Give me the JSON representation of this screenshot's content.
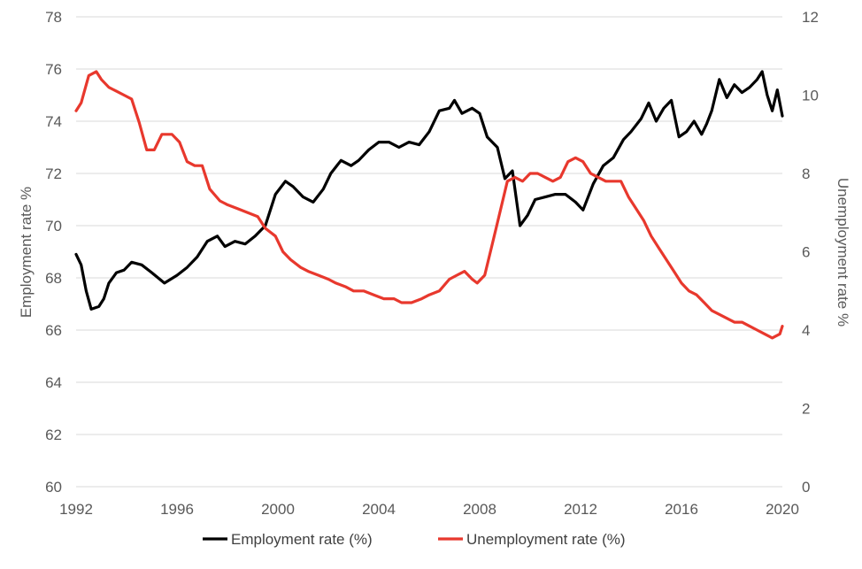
{
  "chart_data": {
    "type": "line",
    "xlabel": "",
    "ylabel": "Employment rate %",
    "y2label": "Unemployment rate %",
    "xlim": [
      1992,
      2020
    ],
    "ylim": [
      60,
      78
    ],
    "y2lim": [
      0,
      12
    ],
    "x_ticks": [
      "1992",
      "1996",
      "2000",
      "2004",
      "2008",
      "2012",
      "2016",
      "2020"
    ],
    "y_ticks": [
      "60",
      "62",
      "64",
      "66",
      "68",
      "70",
      "72",
      "74",
      "76",
      "78"
    ],
    "y2_ticks": [
      "0",
      "2",
      "4",
      "6",
      "8",
      "10",
      "12"
    ],
    "grid": "horizontal",
    "legend_position": "bottom",
    "colors": {
      "employment": "#000000",
      "unemployment": "#e8382d",
      "grid": "#d9d9d9"
    },
    "series": [
      {
        "name": "Employment rate (%)",
        "axis": "left",
        "x": [
          1992.0,
          1992.2,
          1992.4,
          1992.6,
          1992.9,
          1993.1,
          1993.3,
          1993.6,
          1993.9,
          1994.2,
          1994.6,
          1995.0,
          1995.5,
          1996.0,
          1996.4,
          1996.8,
          1997.2,
          1997.6,
          1997.9,
          1998.3,
          1998.7,
          1999.1,
          1999.5,
          1999.9,
          2000.3,
          2000.6,
          2001.0,
          2001.4,
          2001.8,
          2002.1,
          2002.5,
          2002.9,
          2003.2,
          2003.6,
          2004.0,
          2004.4,
          2004.8,
          2005.2,
          2005.6,
          2006.0,
          2006.4,
          2006.8,
          2007.0,
          2007.3,
          2007.7,
          2008.0,
          2008.3,
          2008.7,
          2009.0,
          2009.3,
          2009.6,
          2009.9,
          2010.2,
          2010.6,
          2011.0,
          2011.4,
          2011.8,
          2012.1,
          2012.5,
          2012.9,
          2013.3,
          2013.7,
          2014.0,
          2014.4,
          2014.7,
          2015.0,
          2015.3,
          2015.6,
          2015.9,
          2016.2,
          2016.5,
          2016.8,
          2017.0,
          2017.2,
          2017.5,
          2017.8,
          2018.1,
          2018.4,
          2018.7,
          2019.0,
          2019.2,
          2019.4,
          2019.6,
          2019.8,
          2020.0
        ],
        "values": [
          68.9,
          68.5,
          67.5,
          66.8,
          66.9,
          67.2,
          67.8,
          68.2,
          68.3,
          68.6,
          68.5,
          68.2,
          67.8,
          68.1,
          68.4,
          68.8,
          69.4,
          69.6,
          69.2,
          69.4,
          69.3,
          69.6,
          70.0,
          71.2,
          71.7,
          71.5,
          71.1,
          70.9,
          71.4,
          72.0,
          72.5,
          72.3,
          72.5,
          72.9,
          73.2,
          73.2,
          73.0,
          73.2,
          73.1,
          73.6,
          74.4,
          74.5,
          74.8,
          74.3,
          74.5,
          74.3,
          73.4,
          73.0,
          71.8,
          72.1,
          70.0,
          70.4,
          71.0,
          71.1,
          71.2,
          71.2,
          70.9,
          70.6,
          71.6,
          72.3,
          72.6,
          73.3,
          73.6,
          74.1,
          74.7,
          74.0,
          74.5,
          74.8,
          73.4,
          73.6,
          74.0,
          73.5,
          73.9,
          74.4,
          75.6,
          74.9,
          75.4,
          75.1,
          75.3,
          75.6,
          75.9,
          75.0,
          74.4,
          75.2,
          74.2
        ]
      },
      {
        "name": "Unemployment rate (%)",
        "axis": "right",
        "x": [
          1992.0,
          1992.2,
          1992.5,
          1992.8,
          1993.0,
          1993.3,
          1993.6,
          1993.9,
          1994.2,
          1994.5,
          1994.8,
          1995.1,
          1995.4,
          1995.8,
          1996.1,
          1996.4,
          1996.7,
          1997.0,
          1997.3,
          1997.7,
          1998.0,
          1998.4,
          1998.8,
          1999.2,
          1999.5,
          1999.9,
          2000.2,
          2000.5,
          2000.9,
          2001.2,
          2001.6,
          2002.0,
          2002.3,
          2002.7,
          2003.0,
          2003.4,
          2003.8,
          2004.2,
          2004.6,
          2004.9,
          2005.3,
          2005.7,
          2006.0,
          2006.4,
          2006.8,
          2007.1,
          2007.4,
          2007.7,
          2007.9,
          2008.2,
          2008.5,
          2008.8,
          2009.1,
          2009.4,
          2009.7,
          2010.0,
          2010.3,
          2010.6,
          2010.9,
          2011.2,
          2011.5,
          2011.8,
          2012.1,
          2012.4,
          2012.7,
          2013.0,
          2013.3,
          2013.6,
          2013.9,
          2014.2,
          2014.5,
          2014.8,
          2015.1,
          2015.4,
          2015.7,
          2016.0,
          2016.3,
          2016.6,
          2016.9,
          2017.2,
          2017.5,
          2017.8,
          2018.1,
          2018.4,
          2018.7,
          2019.0,
          2019.3,
          2019.6,
          2019.9,
          2020.0
        ],
        "values": [
          9.6,
          9.8,
          10.5,
          10.6,
          10.4,
          10.2,
          10.1,
          10.0,
          9.9,
          9.3,
          8.6,
          8.6,
          9.0,
          9.0,
          8.8,
          8.3,
          8.2,
          8.2,
          7.6,
          7.3,
          7.2,
          7.1,
          7.0,
          6.9,
          6.6,
          6.4,
          6.0,
          5.8,
          5.6,
          5.5,
          5.4,
          5.3,
          5.2,
          5.1,
          5.0,
          5.0,
          4.9,
          4.8,
          4.8,
          4.7,
          4.7,
          4.8,
          4.9,
          5.0,
          5.3,
          5.4,
          5.5,
          5.3,
          5.2,
          5.4,
          6.2,
          7.0,
          7.8,
          7.9,
          7.8,
          8.0,
          8.0,
          7.9,
          7.8,
          7.9,
          8.3,
          8.4,
          8.3,
          8.0,
          7.9,
          7.8,
          7.8,
          7.8,
          7.4,
          7.1,
          6.8,
          6.4,
          6.1,
          5.8,
          5.5,
          5.2,
          5.0,
          4.9,
          4.7,
          4.5,
          4.4,
          4.3,
          4.2,
          4.2,
          4.1,
          4.0,
          3.9,
          3.8,
          3.9,
          4.1
        ]
      }
    ]
  }
}
